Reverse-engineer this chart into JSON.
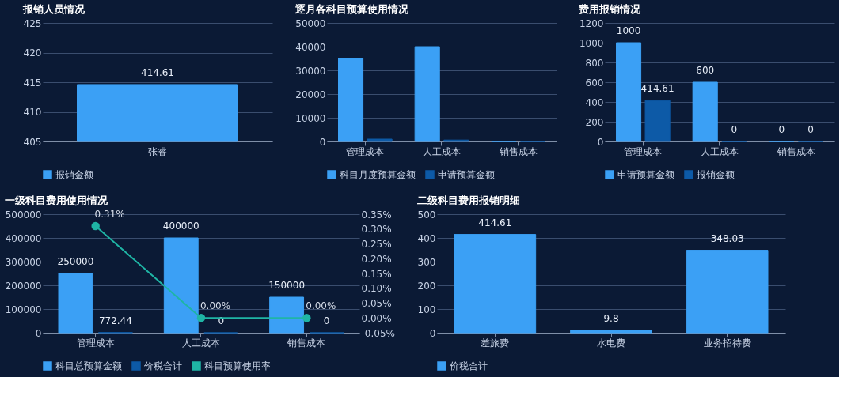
{
  "chart_data": [
    {
      "type": "bar",
      "title": "报销人员情况",
      "categories": [
        "张睿"
      ],
      "series": [
        {
          "name": "报销金额",
          "color": "#3ba0f5",
          "values": [
            414.61
          ]
        }
      ],
      "ylim": [
        405,
        425
      ],
      "yticks": [
        405,
        410,
        415,
        420,
        425
      ],
      "grid": "y",
      "legend": "bottom",
      "data_labels": true
    },
    {
      "type": "bar",
      "title": "逐月各科目预算使用情况",
      "categories": [
        "管理成本",
        "人工成本",
        "销售成本"
      ],
      "series": [
        {
          "name": "科目月度预算金额",
          "color": "#3ba0f5",
          "values": [
            35000,
            40000,
            0
          ]
        },
        {
          "name": "申请预算金额",
          "color": "#0d5aa7",
          "values": [
            1000,
            600,
            0
          ]
        }
      ],
      "ylim": [
        0,
        50000
      ],
      "yticks": [
        0,
        10000,
        20000,
        30000,
        40000,
        50000
      ],
      "grid": "y",
      "legend": "bottom"
    },
    {
      "type": "bar",
      "title": "费用报销情况",
      "categories": [
        "管理成本",
        "人工成本",
        "销售成本"
      ],
      "series": [
        {
          "name": "申请预算金额",
          "color": "#3ba0f5",
          "values": [
            1000,
            600,
            0
          ]
        },
        {
          "name": "报销金额",
          "color": "#0d5aa7",
          "values": [
            414.61,
            0,
            0
          ]
        }
      ],
      "ylim": [
        0,
        1200
      ],
      "yticks": [
        0,
        200,
        400,
        600,
        800,
        1000,
        1200
      ],
      "grid": "y",
      "legend": "bottom",
      "data_labels": true
    },
    {
      "type": "bar",
      "title": "一级科目费用使用情况",
      "categories": [
        "管理成本",
        "人工成本",
        "销售成本"
      ],
      "series": [
        {
          "name": "科目总预算金额",
          "color": "#3ba0f5",
          "values": [
            250000,
            400000,
            150000
          ],
          "value_labels": [
            "250000",
            "400000",
            "150000"
          ]
        },
        {
          "name": "价税合计",
          "color": "#0d5aa7",
          "values": [
            772.44,
            0,
            0
          ],
          "value_labels": [
            "772.44",
            "0",
            "0"
          ]
        },
        {
          "name": "科目预算使用率",
          "color": "#1fb5a5",
          "type": "line",
          "axis": "y2",
          "marker": "circle",
          "values": [
            0.31,
            0,
            0
          ],
          "value_labels": [
            "0.31%",
            "0.00%",
            "0.00%"
          ]
        }
      ],
      "ylim": [
        0,
        500000
      ],
      "yticks": [
        0,
        100000,
        200000,
        300000,
        400000,
        500000
      ],
      "y2lim": [
        -0.05,
        0.35
      ],
      "y2ticks": [
        {
          "value": -0.05,
          "label": "-0.05%"
        },
        {
          "value": 0,
          "label": "0.00%"
        },
        {
          "value": 0.05,
          "label": "0.05%"
        },
        {
          "value": 0.1,
          "label": "0.10%"
        },
        {
          "value": 0.15,
          "label": "0.15%"
        },
        {
          "value": 0.2,
          "label": "0.20%"
        },
        {
          "value": 0.25,
          "label": "0.25%"
        },
        {
          "value": 0.3,
          "label": "0.30%"
        },
        {
          "value": 0.35,
          "label": "0.35%"
        }
      ],
      "grid": "y",
      "legend": "bottom"
    },
    {
      "type": "bar",
      "title": "二级科目费用报销明细",
      "categories": [
        "差旅费",
        "水电费",
        "业务招待费"
      ],
      "series": [
        {
          "name": "价税合计",
          "color": "#3ba0f5",
          "values": [
            414.61,
            9.8,
            348.03
          ]
        }
      ],
      "ylim": [
        0,
        500
      ],
      "yticks": [
        0,
        100,
        200,
        300,
        400,
        500
      ],
      "grid": "y",
      "legend": "bottom",
      "data_labels": true
    }
  ]
}
